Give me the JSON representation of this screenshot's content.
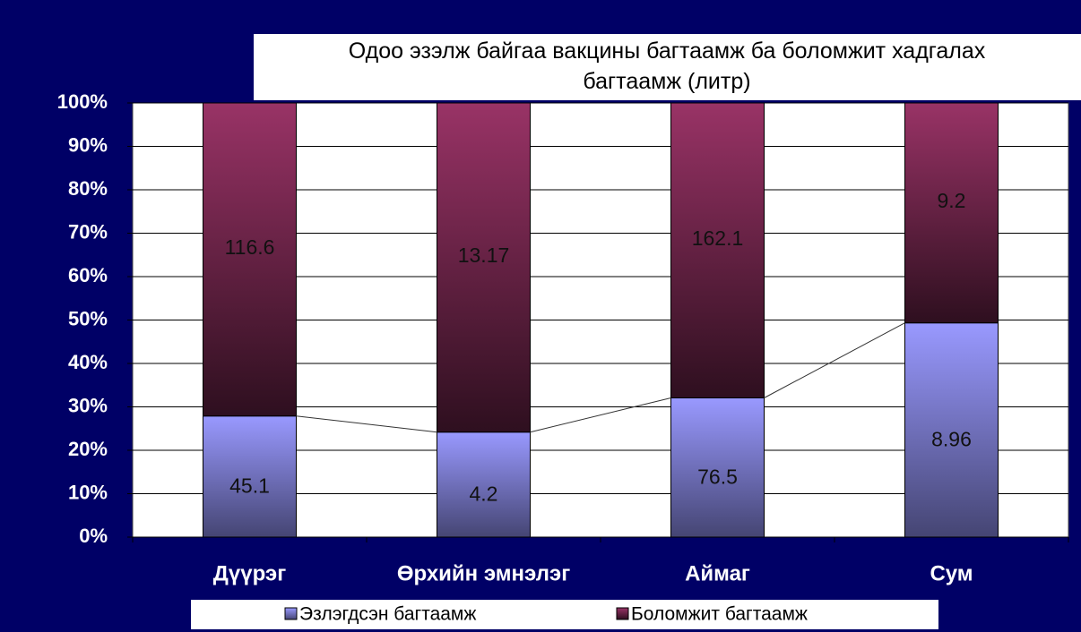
{
  "chart_data": {
    "type": "stacked_bar_100",
    "title": "Одоо эзэлж байгаа вакцины багтаамж ба боломжит хадгалах багтаамж (литр)",
    "categories": [
      "Дүүрэг",
      "Өрхийн эмнэлэг",
      "Аймаг",
      "Сум"
    ],
    "series": [
      {
        "name": "Эзлэгдсэн багтаамж",
        "color": "#9999ff",
        "values": [
          45.1,
          4.2,
          76.5,
          8.96
        ]
      },
      {
        "name": "Боломжит багтаамж",
        "color": "#993366",
        "values": [
          116.6,
          13.17,
          162.1,
          9.2
        ]
      }
    ],
    "ylim": [
      0,
      100
    ],
    "yticks": [
      {
        "value": 0,
        "label": "0%"
      },
      {
        "value": 10,
        "label": "10%"
      },
      {
        "value": 20,
        "label": "20%"
      },
      {
        "value": 30,
        "label": "30%"
      },
      {
        "value": 40,
        "label": "40%"
      },
      {
        "value": 50,
        "label": "50%"
      },
      {
        "value": 60,
        "label": "60%"
      },
      {
        "value": 70,
        "label": "70%"
      },
      {
        "value": 80,
        "label": "80%"
      },
      {
        "value": 90,
        "label": "90%"
      },
      {
        "value": 100,
        "label": "100%"
      }
    ],
    "grid": true,
    "legend": "bottom"
  }
}
